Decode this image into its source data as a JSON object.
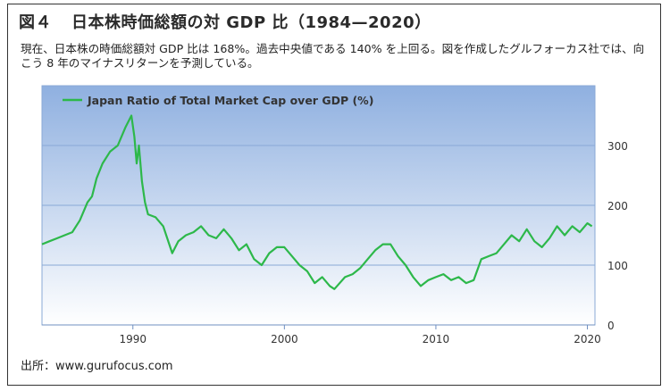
{
  "figure": {
    "number": "図４",
    "title": "日本株時価総額の対 GDP 比（1984—2020）",
    "description": "現在、日本株の時価総額対 GDP 比は 168%。過去中央値である 140% を上回る。図を作成したグルフォーカス社では、向こう 8 年のマイナスリターンを予測している。",
    "source": "出所：www.gurufocus.com"
  },
  "colors": {
    "line": "#2db84a",
    "grid": "#8aa9d6",
    "bg_top": "#8fb0e0",
    "bg_bottom": "#ffffff"
  },
  "chart_data": {
    "type": "line",
    "legend": "Japan Ratio of Total Market Cap over GDP (%)",
    "legend_position": "top-left",
    "xlim": [
      1984,
      2020.5
    ],
    "ylim": [
      0,
      400
    ],
    "x_ticks": [
      1990,
      2000,
      2010,
      2020
    ],
    "y_ticks": [
      0,
      100,
      200,
      300
    ],
    "grid": "horizontal",
    "series": [
      {
        "name": "Japan Ratio of Total Market Cap over GDP (%)",
        "x": [
          1984.0,
          1984.5,
          1985.0,
          1985.5,
          1986.0,
          1986.5,
          1987.0,
          1987.3,
          1987.6,
          1988.0,
          1988.5,
          1989.0,
          1989.5,
          1989.9,
          1990.1,
          1990.25,
          1990.4,
          1990.6,
          1990.8,
          1991.0,
          1991.5,
          1992.0,
          1992.6,
          1993.0,
          1993.5,
          1994.0,
          1994.5,
          1995.0,
          1995.5,
          1996.0,
          1996.5,
          1997.0,
          1997.5,
          1998.0,
          1998.5,
          1999.0,
          1999.5,
          2000.0,
          2000.5,
          2001.0,
          2001.5,
          2002.0,
          2002.5,
          2003.0,
          2003.3,
          2004.0,
          2004.5,
          2005.0,
          2005.5,
          2006.0,
          2006.5,
          2007.0,
          2007.5,
          2008.0,
          2008.5,
          2009.0,
          2009.5,
          2010.0,
          2010.5,
          2011.0,
          2011.5,
          2012.0,
          2012.5,
          2013.0,
          2013.5,
          2014.0,
          2014.5,
          2015.0,
          2015.5,
          2016.0,
          2016.5,
          2017.0,
          2017.5,
          2018.0,
          2018.5,
          2019.0,
          2019.5,
          2020.0,
          2020.3
        ],
        "values": [
          135,
          140,
          145,
          150,
          155,
          175,
          205,
          215,
          245,
          270,
          290,
          300,
          330,
          350,
          315,
          270,
          300,
          240,
          205,
          185,
          180,
          165,
          120,
          140,
          150,
          155,
          165,
          150,
          145,
          160,
          145,
          125,
          135,
          110,
          100,
          120,
          130,
          130,
          115,
          100,
          90,
          70,
          80,
          65,
          60,
          80,
          85,
          95,
          110,
          125,
          135,
          135,
          115,
          100,
          80,
          65,
          75,
          80,
          85,
          75,
          80,
          70,
          75,
          110,
          115,
          120,
          135,
          150,
          140,
          160,
          140,
          130,
          145,
          165,
          150,
          165,
          155,
          170,
          165
        ]
      }
    ]
  }
}
